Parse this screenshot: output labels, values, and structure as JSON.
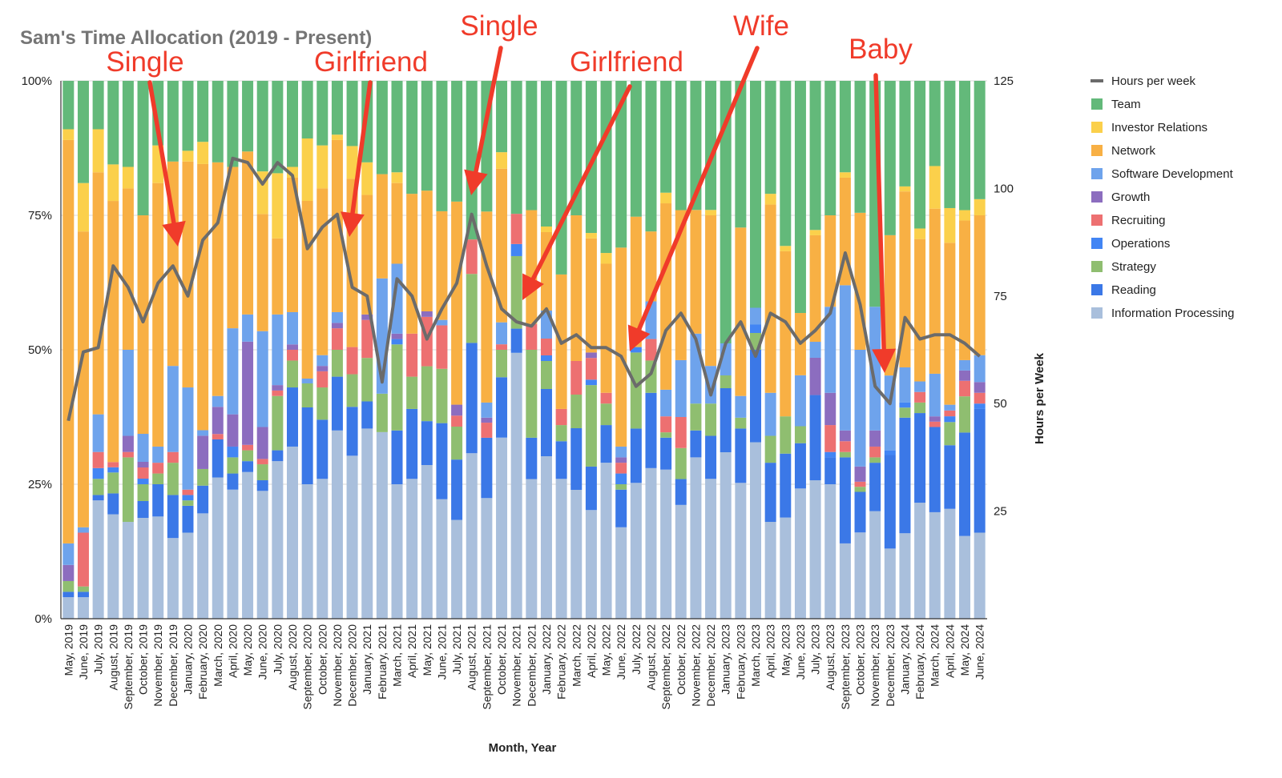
{
  "chart_data": {
    "type": "bar",
    "stacked": "percent",
    "title": "Sam's Time Allocation (2019 - Present)",
    "xlabel": "Month, Year",
    "ylabel_right": "Hours per Week",
    "ylim_left": [
      0,
      100
    ],
    "left_ticks": [
      "0%",
      "25%",
      "50%",
      "75%",
      "100%"
    ],
    "ylim_right": [
      0,
      125
    ],
    "right_ticks": [
      "25",
      "50",
      "75",
      "100",
      "125"
    ],
    "grid": true,
    "legend_position": "right",
    "legend": [
      "Hours per week",
      "Team",
      "Investor Relations",
      "Network",
      "Software Development",
      "Growth",
      "Recruiting",
      "Operations",
      "Strategy",
      "Reading",
      "Information Processing"
    ],
    "categories": [
      "May, 2019",
      "June, 2019",
      "July, 2019",
      "August, 2019",
      "September, 2019",
      "October, 2019",
      "November, 2019",
      "December, 2019",
      "January, 2020",
      "February, 2020",
      "March, 2020",
      "April, 2020",
      "May, 2020",
      "June, 2020",
      "July, 2020",
      "August, 2020",
      "September, 2020",
      "October, 2020",
      "November, 2020",
      "December, 2020",
      "January, 2021",
      "February, 2021",
      "March, 2021",
      "April, 2021",
      "May, 2021",
      "June, 2021",
      "July, 2021",
      "August, 2021",
      "September, 2021",
      "October, 2021",
      "November, 2021",
      "December, 2021",
      "January, 2022",
      "February, 2022",
      "March, 2022",
      "April, 2022",
      "May, 2022",
      "June, 2022",
      "July, 2022",
      "August, 2022",
      "September, 2022",
      "October, 2022",
      "November, 2022",
      "December, 2022",
      "January, 2023",
      "February, 2023",
      "March, 2023",
      "April, 2023",
      "May, 2023",
      "June, 2023",
      "July, 2023",
      "August, 2023",
      "September, 2023",
      "October, 2023",
      "November, 2023",
      "December, 2023",
      "January, 2024",
      "February, 2024",
      "March, 2024",
      "April, 2024",
      "May, 2024",
      "June, 2024"
    ],
    "series": [
      {
        "name": "Information Processing",
        "color": "#a9bfdc",
        "values": [
          4,
          4,
          22,
          20,
          18,
          18,
          19,
          15,
          16,
          19,
          26,
          24,
          27,
          24,
          29,
          32,
          28,
          26,
          35,
          30,
          35,
          34,
          25,
          26,
          28,
          22,
          18,
          24,
          24,
          33,
          44,
          27,
          29,
          26,
          23,
          20,
          29,
          17,
          25,
          28,
          28,
          22,
          30,
          26,
          26,
          25,
          21,
          18,
          19,
          23,
          26,
          25,
          14,
          17,
          20,
          15,
          17,
          22,
          20,
          19,
          16,
          16
        ]
      },
      {
        "name": "Reading",
        "color": "#3b78e7",
        "values": [
          1,
          1,
          1,
          4,
          0,
          3,
          6,
          8,
          5,
          5,
          7,
          3,
          2,
          2,
          2,
          11,
          16,
          11,
          10,
          9,
          5,
          0,
          10,
          13,
          8,
          14,
          11,
          16,
          12,
          11,
          4,
          8,
          12,
          7,
          11,
          8,
          7,
          7,
          10,
          14,
          6,
          5,
          5,
          8,
          10,
          10,
          11,
          11,
          12,
          8,
          16,
          5,
          16,
          8,
          9,
          20,
          23,
          17,
          16,
          11,
          20,
          23
        ]
      },
      {
        "name": "Strategy",
        "color": "#8fbe70",
        "values": [
          2,
          1,
          3,
          4,
          12,
          3,
          2,
          6,
          1,
          3,
          0,
          3,
          2,
          3,
          10,
          5,
          5,
          6,
          5,
          6,
          8,
          7,
          16,
          6,
          10,
          10,
          6,
          10,
          0,
          5,
          12,
          17,
          5,
          3,
          6,
          15,
          4,
          1,
          14,
          6,
          1,
          6,
          5,
          6,
          2,
          2,
          2,
          5,
          7,
          3,
          0,
          0,
          1,
          1,
          1,
          0,
          2,
          2,
          0,
          4,
          7,
          0
        ]
      },
      {
        "name": "Operations",
        "color": "#4285f4",
        "values": [
          0,
          0,
          2,
          1,
          0,
          1,
          0,
          0,
          1,
          0,
          0,
          2,
          0,
          0,
          0,
          0,
          0,
          0,
          0,
          0,
          0,
          0,
          1,
          0,
          0,
          0,
          0,
          0,
          0,
          0,
          2,
          0,
          1,
          0,
          0,
          1,
          0,
          2,
          1,
          0,
          0,
          0,
          0,
          0,
          0,
          0,
          1,
          0,
          0,
          0,
          0,
          1,
          0,
          0,
          0,
          1,
          1,
          0,
          0,
          1,
          0,
          1
        ]
      },
      {
        "name": "Recruiting",
        "color": "#ed7071",
        "values": [
          0,
          10,
          3,
          1,
          1,
          2,
          2,
          2,
          1,
          0,
          1,
          0,
          1,
          1,
          1,
          2,
          0,
          3,
          4,
          5,
          7,
          0,
          0,
          8,
          9,
          8,
          2,
          5,
          3,
          1,
          5,
          5,
          3,
          3,
          6,
          4,
          2,
          2,
          0,
          4,
          3,
          6,
          0,
          0,
          0,
          0,
          0,
          0,
          0,
          0,
          0,
          5,
          2,
          1,
          2,
          0,
          0,
          2,
          1,
          1,
          3,
          2
        ]
      },
      {
        "name": "Growth",
        "color": "#8c6dbf",
        "values": [
          3,
          0,
          0,
          0,
          3,
          1,
          0,
          0,
          0,
          6,
          5,
          6,
          19,
          6,
          1,
          1,
          0,
          1,
          1,
          0,
          1,
          0,
          1,
          0,
          1,
          0,
          2,
          0,
          1,
          0,
          0,
          0,
          0,
          0,
          0,
          1,
          0,
          1,
          0,
          0,
          0,
          0,
          0,
          0,
          0,
          0,
          0,
          0,
          0,
          0,
          7,
          6,
          2,
          3,
          3,
          0,
          0,
          0,
          1,
          0,
          2,
          2
        ]
      },
      {
        "name": "Software Development",
        "color": "#6ea3ec",
        "values": [
          4,
          1,
          7,
          0,
          16,
          5,
          3,
          16,
          19,
          1,
          2,
          16,
          5,
          18,
          13,
          6,
          1,
          2,
          2,
          0,
          0,
          21,
          13,
          0,
          0,
          1,
          0,
          0,
          3,
          4,
          0,
          0,
          5,
          0,
          0,
          0,
          0,
          2,
          0,
          7,
          5,
          11,
          13,
          7,
          5,
          4,
          2,
          8,
          0,
          9,
          3,
          16,
          27,
          23,
          23,
          16,
          7,
          2,
          8,
          1,
          2,
          5
        ]
      },
      {
        "name": "Network",
        "color": "#f8b044",
        "values": [
          75,
          55,
          45,
          50,
          30,
          39,
          49,
          38,
          42,
          48,
          43,
          30,
          30,
          22,
          14,
          25,
          37,
          31,
          32,
          31,
          22,
          19,
          15,
          26,
          22,
          20,
          37,
          0,
          38,
          28,
          0,
          22,
          14,
          25,
          26,
          21,
          24,
          37,
          24,
          13,
          35,
          29,
          23,
          28,
          0,
          31,
          0,
          35,
          31,
          11,
          20,
          17,
          20,
          27,
          0,
          30,
          35,
          27,
          31,
          28,
          27,
          26
        ]
      },
      {
        "name": "Investor Relations",
        "color": "#fbd04b",
        "values": [
          2,
          9,
          8,
          7,
          4,
          0,
          7,
          0,
          2,
          4,
          0,
          0,
          0,
          8,
          12,
          2,
          13,
          8,
          1,
          6,
          6,
          0,
          2,
          0,
          0,
          0,
          0,
          0,
          0,
          3,
          0,
          0,
          1,
          0,
          0,
          1,
          2,
          0,
          0,
          0,
          2,
          0,
          0,
          1,
          0,
          0,
          0,
          2,
          1,
          0,
          1,
          0,
          1,
          0,
          0,
          0,
          1,
          2,
          8,
          6,
          2,
          3
        ]
      },
      {
        "name": "Team",
        "color": "#63b97a",
        "values": [
          9,
          19,
          9,
          16,
          16,
          24,
          12,
          15,
          13,
          11,
          15,
          16,
          13,
          17,
          17,
          16,
          12,
          12,
          10,
          12,
          15,
          17,
          17,
          21,
          20,
          24,
          22,
          23,
          26,
          13,
          22,
          25,
          26,
          36,
          24,
          28,
          32,
          31,
          25,
          28,
          21,
          25,
          24,
          24,
          41,
          27,
          27,
          21,
          31,
          41,
          28,
          25,
          17,
          26,
          42,
          33,
          21,
          28,
          16,
          22,
          25,
          22
        ]
      },
      {
        "name": "Hours per week",
        "color": "#6b6b6b",
        "axis": "right",
        "values": [
          46,
          62,
          63,
          82,
          77,
          69,
          78,
          82,
          75,
          88,
          92,
          107,
          106,
          101,
          106,
          103,
          86,
          91,
          94,
          77,
          75,
          55,
          79,
          75,
          65,
          72,
          78,
          94,
          82,
          72,
          69,
          68,
          72,
          64,
          66,
          63,
          63,
          61,
          54,
          57,
          67,
          71,
          65,
          52,
          64,
          69,
          61,
          71,
          69,
          64,
          67,
          71,
          85,
          73,
          54,
          50,
          70,
          65,
          66,
          66,
          64,
          61
        ]
      }
    ],
    "annotations": [
      {
        "label": "Single",
        "at": "December, 2019"
      },
      {
        "label": "Girlfriend",
        "at": "December, 2020"
      },
      {
        "label": "Single",
        "at": "August, 2021"
      },
      {
        "label": "Girlfriend",
        "at": "November, 2021"
      },
      {
        "label": "Wife",
        "at": "July, 2022"
      },
      {
        "label": "Baby",
        "at": "December, 2023"
      }
    ],
    "annotation_color": "#f03b2a"
  }
}
